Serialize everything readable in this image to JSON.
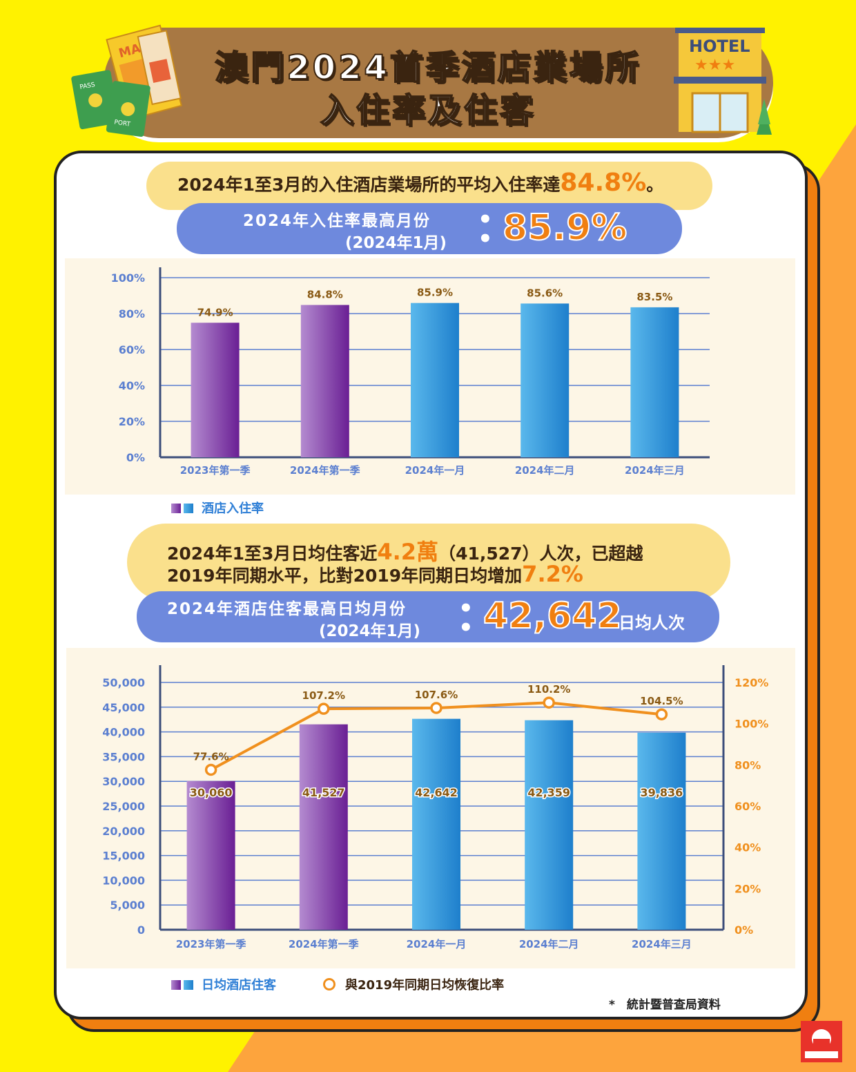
{
  "header": {
    "title_line1": "澳門2024首季酒店業場所",
    "title_line2": "入住率及住客",
    "hotel_sign": "HOTEL",
    "hotel_stars": "★★★",
    "map_label": "MAP",
    "passport_label_1": "PASS",
    "passport_label_2": "PORT"
  },
  "section1": {
    "headline_prefix": "2024年1至3月的入住酒店業場所的平均入住率達",
    "headline_value": "84.8%",
    "headline_suffix": "。",
    "peak_label_line1": "2024年入住率最高月份",
    "peak_label_line2": "(2024年1月)",
    "peak_value": "85.9%",
    "legend": "酒店入住率"
  },
  "section2": {
    "headline_line1_prefix": "2024年1至3月日均住客近",
    "headline_line1_value": "4.2萬",
    "headline_line1_suffix": "（41,527）人次，已超越",
    "headline_line2_prefix": "2019年同期水平，比對2019年同期日均增加",
    "headline_line2_value": "7.2%",
    "peak_label_line1": "2024年酒店住客最高日均月份",
    "peak_label_line2": "(2024年1月)",
    "peak_value": "42,642",
    "peak_unit": "日均人次",
    "legend_bar": "日均酒店住客",
    "legend_line": "與2019年同期日均恢復比率"
  },
  "source": "*　統計暨普查局資料",
  "colors": {
    "purple_top": "#B48BD0",
    "purple_bottom": "#6A1F94",
    "blue_top": "#5AB8EC",
    "blue_bottom": "#1E7FCC",
    "orange": "#F0901E",
    "axis_blue": "#5B7FD0",
    "label_brown": "#8A5A14"
  },
  "chart_data": [
    {
      "type": "bar",
      "categories": [
        "2023年第一季",
        "2024年第一季",
        "2024年一月",
        "2024年二月",
        "2024年三月"
      ],
      "values": [
        74.9,
        84.8,
        85.9,
        85.6,
        83.5
      ],
      "data_labels": [
        "74.9%",
        "84.8%",
        "85.9%",
        "85.6%",
        "83.5%"
      ],
      "bar_colors": [
        "purple",
        "purple",
        "blue",
        "blue",
        "blue"
      ],
      "ylim": [
        0,
        100
      ],
      "yticks": [
        "0%",
        "20%",
        "40%",
        "60%",
        "80%",
        "100%"
      ],
      "ytick_values": [
        0,
        20,
        40,
        60,
        80,
        100
      ],
      "grid": true,
      "legend": "bottom-left"
    },
    {
      "type": "bar",
      "categories": [
        "2023年第一季",
        "2024年第一季",
        "2024年一月",
        "2024年二月",
        "2024年三月"
      ],
      "values": [
        30060,
        41527,
        42642,
        42359,
        39836
      ],
      "data_labels": [
        "30,060",
        "41,527",
        "42,642",
        "42,359",
        "39,836"
      ],
      "bar_colors": [
        "purple",
        "purple",
        "blue",
        "blue",
        "blue"
      ],
      "ylim": [
        0,
        50000
      ],
      "yticks": [
        "0",
        "5,000",
        "10,000",
        "15,000",
        "20,000",
        "25,000",
        "30,000",
        "35,000",
        "40,000",
        "45,000",
        "50,000"
      ],
      "ytick_values": [
        0,
        5000,
        10000,
        15000,
        20000,
        25000,
        30000,
        35000,
        40000,
        45000,
        50000
      ],
      "line_series": {
        "values": [
          77.6,
          107.2,
          107.6,
          110.2,
          104.5
        ],
        "data_labels": [
          "77.6%",
          "107.2%",
          "107.6%",
          "110.2%",
          "104.5%"
        ],
        "ylim": [
          0,
          120
        ],
        "yticks": [
          "0%",
          "20%",
          "40%",
          "60%",
          "80%",
          "100%",
          "120%"
        ],
        "ytick_values": [
          0,
          20,
          40,
          60,
          80,
          100,
          120
        ]
      },
      "grid": true,
      "legend": "bottom-left"
    }
  ]
}
